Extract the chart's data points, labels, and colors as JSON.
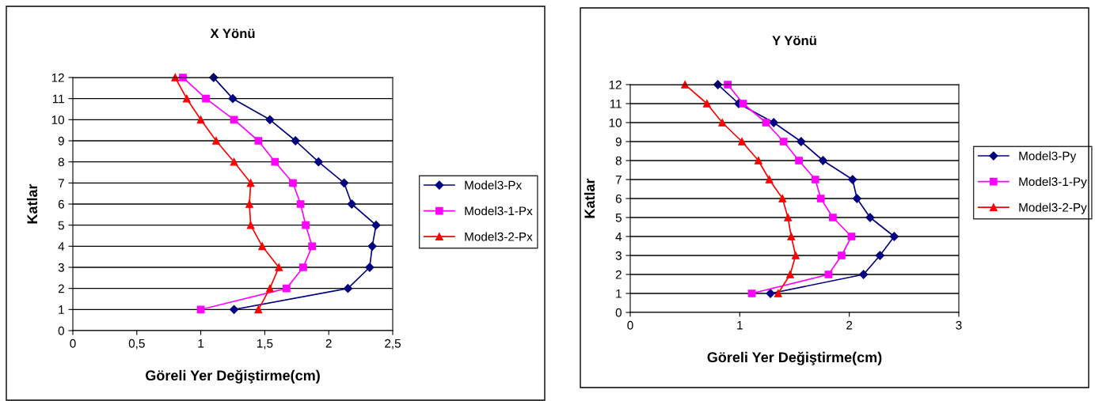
{
  "chart_data": [
    {
      "type": "line",
      "title": "X Yönü",
      "xlabel": "Göreli Yer Değiştirme(cm)",
      "ylabel": "Katlar",
      "xlim": [
        0,
        2.5
      ],
      "xticks": [
        0,
        {
          "value": 0.5,
          "label": "0,5"
        },
        1,
        {
          "value": 1.5,
          "label": "1,5"
        },
        2,
        {
          "value": 2.5,
          "label": "2,5"
        }
      ],
      "ylim": [
        0,
        12
      ],
      "yticks": [
        0,
        1,
        2,
        3,
        4,
        5,
        6,
        7,
        8,
        9,
        10,
        11,
        12
      ],
      "grid": "y",
      "legend": "right",
      "series": [
        {
          "name": "Model3-Px",
          "color": "#000080",
          "marker": "diamond",
          "x": [
            1.26,
            2.15,
            2.32,
            2.34,
            2.37,
            2.18,
            2.12,
            1.92,
            1.74,
            1.54,
            1.25,
            1.1
          ],
          "values": [
            1,
            2,
            3,
            4,
            5,
            6,
            7,
            8,
            9,
            10,
            11,
            12
          ]
        },
        {
          "name": "Model3-1-Px",
          "color": "#ff00ff",
          "marker": "square",
          "x": [
            1.0,
            1.67,
            1.8,
            1.87,
            1.82,
            1.78,
            1.72,
            1.58,
            1.45,
            1.26,
            1.04,
            0.86
          ],
          "values": [
            1,
            2,
            3,
            4,
            5,
            6,
            7,
            8,
            9,
            10,
            11,
            12
          ]
        },
        {
          "name": "Model3-2-Px",
          "color": "#ff0000",
          "marker": "triangle",
          "x": [
            1.45,
            1.54,
            1.61,
            1.48,
            1.39,
            1.38,
            1.39,
            1.26,
            1.12,
            1.0,
            0.89,
            0.8
          ],
          "values": [
            1,
            2,
            3,
            4,
            5,
            6,
            7,
            8,
            9,
            10,
            11,
            12
          ]
        }
      ]
    },
    {
      "type": "line",
      "title": "Y Yönü",
      "xlabel": "Göreli Yer Değiştirme(cm)",
      "ylabel": "Katlar",
      "xlim": [
        0,
        3
      ],
      "xticks": [
        0,
        1,
        2,
        3
      ],
      "ylim": [
        0,
        12
      ],
      "yticks": [
        0,
        1,
        2,
        3,
        4,
        5,
        6,
        7,
        8,
        9,
        10,
        11,
        12
      ],
      "grid": "y",
      "legend": "right",
      "series": [
        {
          "name": "Model3-Py",
          "color": "#000080",
          "marker": "diamond",
          "x": [
            1.28,
            2.13,
            2.28,
            2.41,
            2.19,
            2.07,
            2.03,
            1.76,
            1.56,
            1.31,
            0.99,
            0.8
          ],
          "values": [
            1,
            2,
            3,
            4,
            5,
            6,
            7,
            8,
            9,
            10,
            11,
            12
          ]
        },
        {
          "name": "Model3-1-Py",
          "color": "#ff00ff",
          "marker": "square",
          "x": [
            1.11,
            1.81,
            1.93,
            2.02,
            1.85,
            1.74,
            1.69,
            1.54,
            1.4,
            1.24,
            1.03,
            0.89
          ],
          "values": [
            1,
            2,
            3,
            4,
            5,
            6,
            7,
            8,
            9,
            10,
            11,
            12
          ]
        },
        {
          "name": "Model3-2-Py",
          "color": "#ff0000",
          "marker": "triangle",
          "x": [
            1.35,
            1.46,
            1.51,
            1.47,
            1.44,
            1.39,
            1.27,
            1.17,
            1.02,
            0.84,
            0.7,
            0.5
          ],
          "values": [
            1,
            2,
            3,
            4,
            5,
            6,
            7,
            8,
            9,
            10,
            11,
            12
          ]
        }
      ]
    }
  ]
}
